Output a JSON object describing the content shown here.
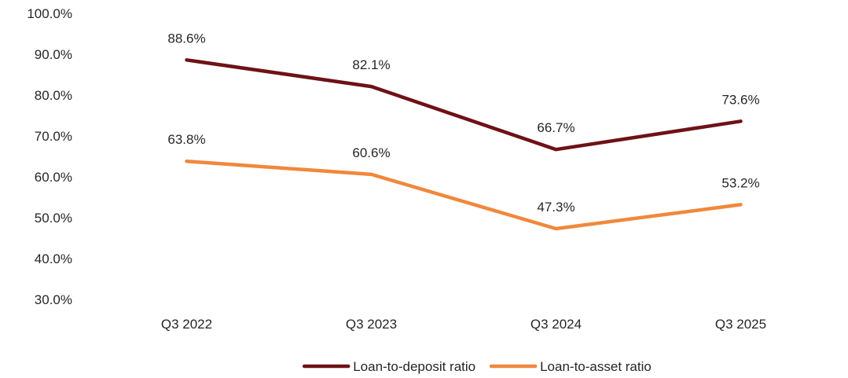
{
  "chart_data": {
    "type": "line",
    "categories": [
      "Q3 2022",
      "Q3 2023",
      "Q3 2024",
      "Q3 2025"
    ],
    "series": [
      {
        "name": "Loan-to-deposit ratio",
        "values": [
          88.6,
          82.1,
          66.7,
          73.6
        ],
        "labels": [
          "88.6%",
          "82.1%",
          "66.7%",
          "73.6%"
        ],
        "color": "#6e1116"
      },
      {
        "name": "Loan-to-asset ratio",
        "values": [
          63.8,
          60.6,
          47.3,
          53.2
        ],
        "labels": [
          "63.8%",
          "60.6%",
          "47.3%",
          "53.2%"
        ],
        "color": "#f0883c"
      }
    ],
    "ylim": [
      30,
      100
    ],
    "yticks": [
      30,
      40,
      50,
      60,
      70,
      80,
      90,
      100
    ],
    "ytick_labels": [
      "30.0%",
      "40.0%",
      "50.0%",
      "60.0%",
      "70.0%",
      "80.0%",
      "90.0%",
      "100.0%"
    ],
    "grid": false,
    "legend_position": "bottom",
    "title": "",
    "xlabel": "",
    "ylabel": ""
  }
}
